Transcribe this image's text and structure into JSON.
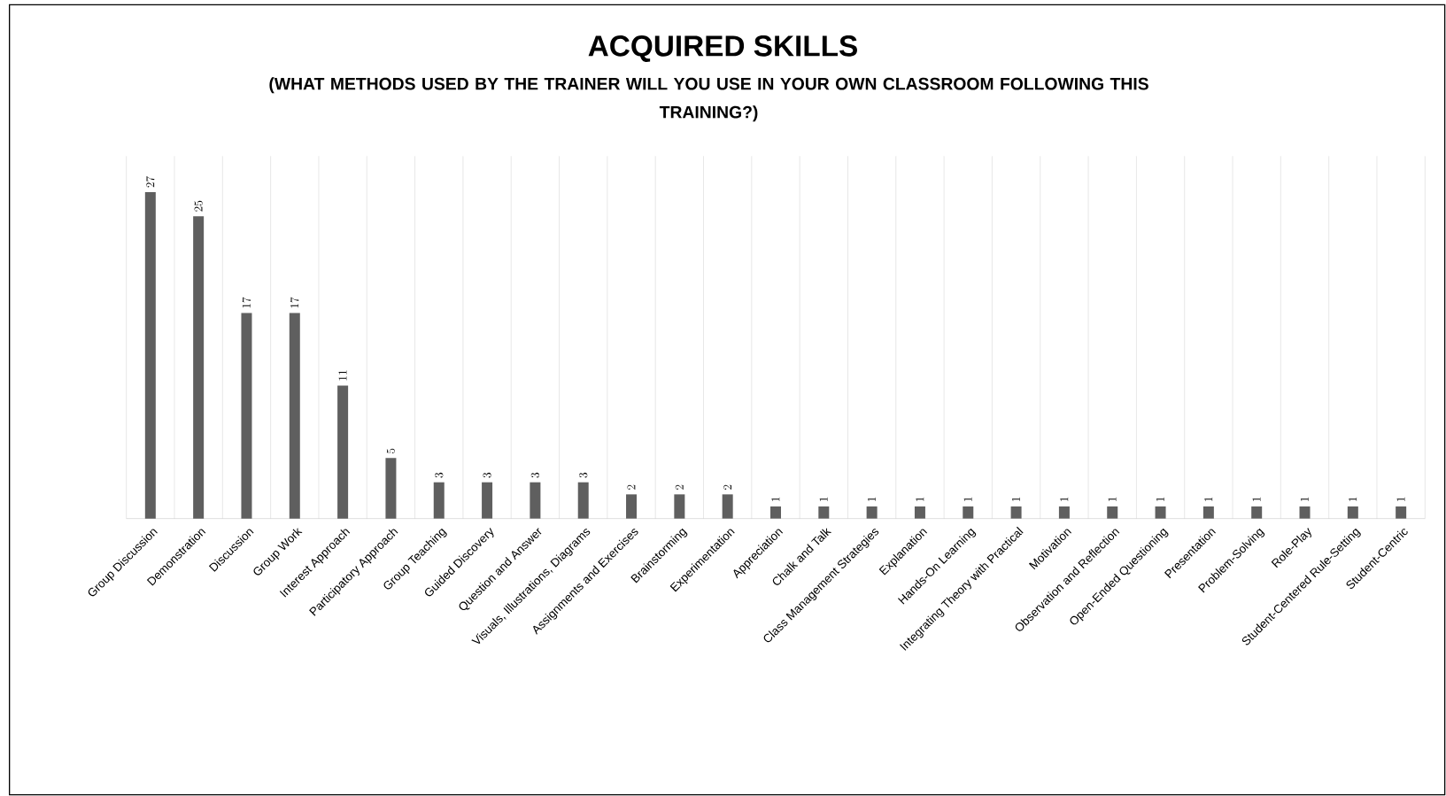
{
  "chart_data": {
    "type": "bar",
    "title": "ACQUIRED SKILLS",
    "subtitle": "(WHAT METHODS USED BY THE TRAINER WILL YOU USE IN YOUR OWN CLASSROOM FOLLOWING THIS TRAINING?)",
    "categories": [
      "Group Discussion",
      "Demonstration",
      "Discussion",
      "Group Work",
      "Interest Approach",
      "Participatory Approach",
      "Group Teaching",
      "Guided Discovery",
      "Question and Answer",
      "Visuals, Illustrations, Diagrams",
      "Assignments and Exercises",
      "Brainstorming",
      "Experimentation",
      "Appreciation",
      "Chalk and Talk",
      "Class Management Strategies",
      "Explanation",
      "Hands-On Learning",
      "Integrating Theory with Practical",
      "Motivation",
      "Observation and Reflection",
      "Open-Ended Questioning",
      "Presentation",
      "Problem-Solving",
      "Role-Play",
      "Student-Centered Rule-Setting",
      "Student-Centric"
    ],
    "values": [
      27,
      25,
      17,
      17,
      11,
      5,
      3,
      3,
      3,
      3,
      2,
      2,
      2,
      1,
      1,
      1,
      1,
      1,
      1,
      1,
      1,
      1,
      1,
      1,
      1,
      1,
      1
    ],
    "color": "#5f5f5f",
    "data_labels": true,
    "grid": "x"
  }
}
